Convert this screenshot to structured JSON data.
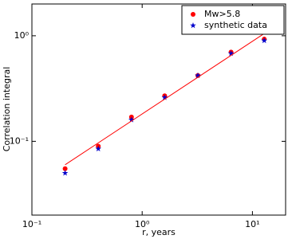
{
  "chart_data": {
    "type": "scatter",
    "xlabel": "r, years",
    "ylabel": "Correlation integral",
    "xscale": "log",
    "yscale": "log",
    "xlim": [
      0.1,
      20
    ],
    "ylim": [
      0.02,
      2
    ],
    "xticks": [
      {
        "value": 0.1,
        "label": "10⁻¹"
      },
      {
        "value": 1,
        "label": "10⁰"
      },
      {
        "value": 10,
        "label": "10¹"
      }
    ],
    "yticks": [
      {
        "value": 0.1,
        "label": "10⁻¹"
      },
      {
        "value": 1,
        "label": "10⁰"
      }
    ],
    "legend": "upper right",
    "series": [
      {
        "name": "Mw>5.8",
        "color": "#ff0000",
        "marker": "o",
        "x": [
          0.2,
          0.4,
          0.8,
          1.6,
          3.2,
          6.4,
          12.8
        ],
        "values": [
          0.055,
          0.09,
          0.17,
          0.27,
          0.42,
          0.7,
          0.93
        ]
      },
      {
        "name": "synthetic data",
        "color": "#0000cc",
        "marker": "*",
        "x": [
          0.2,
          0.4,
          0.8,
          1.6,
          3.2,
          6.4,
          12.8
        ],
        "values": [
          0.05,
          0.085,
          0.16,
          0.26,
          0.42,
          0.68,
          0.9
        ]
      },
      {
        "color": "#ff0000",
        "marker": "line",
        "x": [
          0.2,
          12.8
        ],
        "values": [
          0.06,
          1.05
        ]
      }
    ]
  }
}
